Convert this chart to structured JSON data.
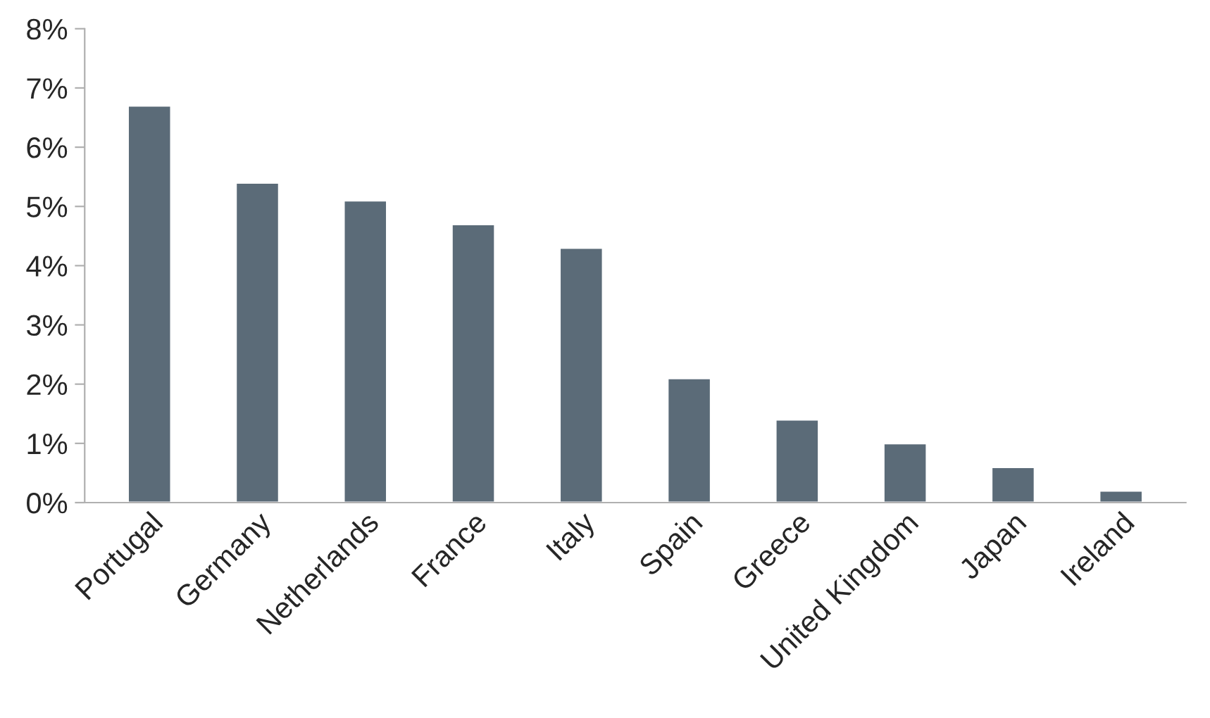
{
  "chart_data": {
    "type": "bar",
    "categories": [
      "Portugal",
      "Germany",
      "Netherlands",
      "France",
      "Italy",
      "Spain",
      "Greece",
      "United Kingdom",
      "Japan",
      "Ireland"
    ],
    "values": [
      6.7,
      5.4,
      5.1,
      4.7,
      4.3,
      2.1,
      1.4,
      1.0,
      0.6,
      0.2
    ],
    "color": "#5b6b78",
    "ylim": [
      0,
      8
    ],
    "yticks": [
      {
        "value": 0,
        "label": "0%"
      },
      {
        "value": 1,
        "label": "1%"
      },
      {
        "value": 2,
        "label": "2%"
      },
      {
        "value": 3,
        "label": "3%"
      },
      {
        "value": 4,
        "label": "4%"
      },
      {
        "value": 5,
        "label": "5%"
      },
      {
        "value": 6,
        "label": "6%"
      },
      {
        "value": 7,
        "label": "7%"
      },
      {
        "value": 8,
        "label": "8%"
      }
    ],
    "grid": false
  }
}
